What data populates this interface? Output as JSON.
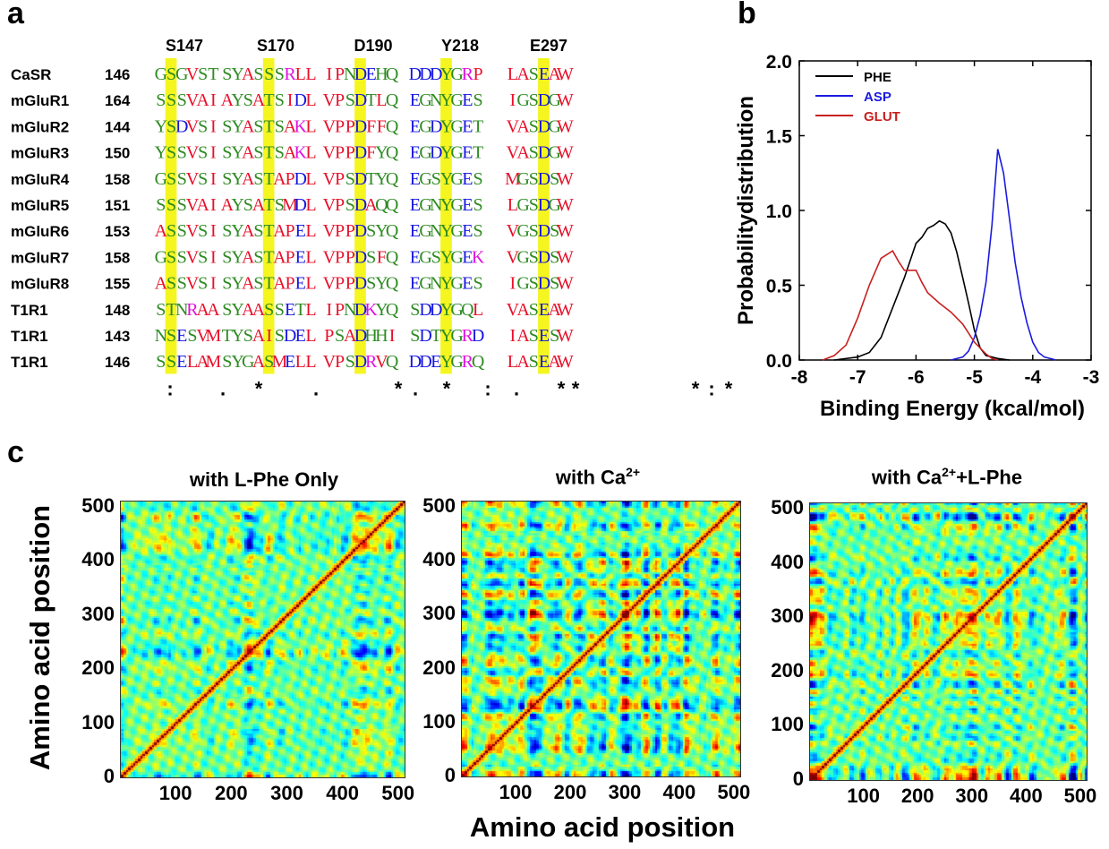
{
  "panels": {
    "a": "a",
    "b": "b",
    "c": "c"
  },
  "alignment": {
    "residue_headers": [
      "S147",
      "S170",
      "D190",
      "Y218",
      "E297"
    ],
    "rows": [
      {
        "name": "CaSR",
        "start": "146",
        "blocks": [
          "GSGVST",
          "SYASSSRLL",
          "IPNDEHQ",
          "DDDYGRP",
          "LASEAW"
        ]
      },
      {
        "name": "mGluR1",
        "start": "164",
        "blocks": [
          "SSSVAI",
          "AYSATSIDL",
          "VPSDTLQ",
          "EGNYGES",
          "IGSDGW"
        ]
      },
      {
        "name": "mGluR2",
        "start": "144",
        "blocks": [
          "YSDVSI",
          "SYASTSAKL",
          "VPPDFFQ",
          "EGDYGET",
          "VASDGW"
        ]
      },
      {
        "name": "mGluR3",
        "start": "150",
        "blocks": [
          "YSSVSI",
          "SYASTSAKL",
          "VPPDFYQ",
          "EGDYGET",
          "VASDGW"
        ]
      },
      {
        "name": "mGluR4",
        "start": "158",
        "blocks": [
          "GSSVSI",
          "SYASTAPDL",
          "VPSDTYQ",
          "EGSYGES",
          "MGSDSW"
        ]
      },
      {
        "name": "mGluR5",
        "start": "151",
        "blocks": [
          "SSSVAI",
          "AYSATSMDL",
          "VPSDAQQ",
          "EGNYGES",
          "LGSDGW"
        ]
      },
      {
        "name": "mGluR6",
        "start": "153",
        "blocks": [
          "ASSVSI",
          "SYASTAPEL",
          "VPPDSYQ",
          "EGNYGES",
          "VGSDSW"
        ]
      },
      {
        "name": "mGluR7",
        "start": "158",
        "blocks": [
          "GSSVSI",
          "SYASTAPEL",
          "VPPDSFQ",
          "EGSYGEK",
          "VGSDSW"
        ]
      },
      {
        "name": "mGluR8",
        "start": "155",
        "blocks": [
          "ASSVSI",
          "SYASTAPEL",
          "VPPDSYQ",
          "EGNYGES",
          "IGSDSW"
        ]
      },
      {
        "name": "T1R1",
        "start": "148",
        "blocks": [
          "STNRAA",
          "SYAASSETL",
          "IPNDKYQ",
          "SDDYGQL",
          "VASEAW"
        ]
      },
      {
        "name": "T1R1",
        "start": "143",
        "blocks": [
          "NSESVM",
          "TYSAISDEL",
          "PSADHHI",
          "SDTYGRD",
          "IASESW"
        ]
      },
      {
        "name": "T1R1",
        "start": "146",
        "blocks": [
          "SSELAM",
          "SYGASMELL",
          "VPSDRVQ",
          "DDEYGRQ",
          "LASEAW"
        ]
      }
    ],
    "conservation": [
      ":",
      ".",
      "*",
      ".",
      "*",
      ".",
      "*",
      ":",
      ".",
      "*",
      "*",
      "*",
      ":",
      "*"
    ],
    "highlight_color": "#f5f520",
    "aa_colors": {
      "hydrophobic": "#e8102a",
      "polar": "#2e8b22",
      "acidic": "#1515e0",
      "basic": "#e010e0"
    }
  },
  "chart_data": [
    {
      "type": "line",
      "xlabel": "Binding Energy (kcal/mol)",
      "ylabel": "Probabilitydistribution",
      "xlim": [
        -8,
        -3
      ],
      "ylim": [
        0,
        2.0
      ],
      "x_ticks": [
        "-8",
        "-7",
        "-6",
        "-5",
        "-4",
        "-3"
      ],
      "y_ticks": [
        "0.0",
        "0.5",
        "1.0",
        "1.5",
        "2.0"
      ],
      "legend_position": "top-left",
      "series": [
        {
          "name": "PHE",
          "color": "#000000",
          "x": [
            -7.4,
            -7.0,
            -6.8,
            -6.6,
            -6.4,
            -6.2,
            -6.0,
            -5.9,
            -5.8,
            -5.7,
            -5.6,
            -5.5,
            -5.4,
            -5.3,
            -5.2,
            -5.1,
            -5.0,
            -4.9,
            -4.8,
            -4.6,
            -4.4
          ],
          "y": [
            0.0,
            0.02,
            0.05,
            0.15,
            0.35,
            0.55,
            0.78,
            0.82,
            0.88,
            0.9,
            0.93,
            0.91,
            0.85,
            0.72,
            0.55,
            0.38,
            0.2,
            0.08,
            0.03,
            0.01,
            0.0
          ]
        },
        {
          "name": "ASP",
          "color": "#1a1ae0",
          "x": [
            -5.4,
            -5.2,
            -5.1,
            -5.0,
            -4.9,
            -4.8,
            -4.7,
            -4.6,
            -4.5,
            -4.4,
            -4.3,
            -4.2,
            -4.1,
            -4.0,
            -3.9,
            -3.8,
            -3.6
          ],
          "y": [
            0.0,
            0.02,
            0.06,
            0.15,
            0.3,
            0.52,
            0.9,
            1.41,
            1.25,
            0.95,
            0.65,
            0.42,
            0.25,
            0.12,
            0.05,
            0.02,
            0.0
          ]
        },
        {
          "name": "GLUT",
          "color": "#c82020",
          "x": [
            -7.6,
            -7.4,
            -7.2,
            -7.0,
            -6.8,
            -6.6,
            -6.4,
            -6.3,
            -6.2,
            -6.1,
            -6.0,
            -5.9,
            -5.8,
            -5.6,
            -5.4,
            -5.2,
            -5.0,
            -4.8,
            -4.7,
            -4.6
          ],
          "y": [
            0.0,
            0.03,
            0.1,
            0.28,
            0.5,
            0.68,
            0.73,
            0.66,
            0.6,
            0.6,
            0.6,
            0.52,
            0.45,
            0.38,
            0.32,
            0.24,
            0.12,
            0.04,
            0.01,
            0.0
          ]
        }
      ]
    },
    {
      "type": "heatmap",
      "title": "with L-Phe Only",
      "ylabel": "Amino acid position",
      "xlabel": "",
      "xlim": [
        0,
        510
      ],
      "ylim": [
        0,
        510
      ],
      "x_ticks": [
        "100",
        "200",
        "300",
        "400",
        "500"
      ],
      "y_ticks": [
        "0",
        "100",
        "200",
        "300",
        "400",
        "500"
      ]
    },
    {
      "type": "heatmap",
      "title": "with Ca",
      "title_sup": "2+",
      "title_suffix": "",
      "ylabel": "",
      "xlabel": "Amino acid position",
      "xlim": [
        0,
        510
      ],
      "ylim": [
        0,
        510
      ],
      "x_ticks": [
        "100",
        "200",
        "300",
        "400",
        "500"
      ],
      "y_ticks": [
        "0",
        "100",
        "200",
        "300",
        "400",
        "500"
      ]
    },
    {
      "type": "heatmap",
      "title": "with Ca",
      "title_sup": "2+",
      "title_suffix": "+L-Phe",
      "ylabel": "",
      "xlabel": "",
      "xlim": [
        0,
        510
      ],
      "ylim": [
        0,
        510
      ],
      "x_ticks": [
        "100",
        "200",
        "300",
        "400",
        "500"
      ],
      "y_ticks": [
        "0",
        "100",
        "200",
        "300",
        "400",
        "500"
      ]
    }
  ]
}
